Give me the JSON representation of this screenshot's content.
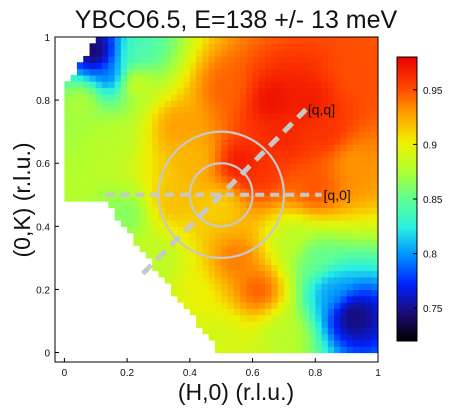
{
  "chart_data": {
    "type": "heatmap",
    "title": "YBCO6.5, E=138 +/- 13 meV",
    "xlabel": "(H,0) (r.l.u.)",
    "ylabel": "(0,K) (r.l.u.)",
    "xlim": [
      -0.03,
      1.0
    ],
    "ylim": [
      -0.03,
      1.0
    ],
    "xticks": [
      0,
      0.2,
      0.4,
      0.6,
      0.8,
      1
    ],
    "xtick_labels": [
      "0",
      "0.2",
      "0.4",
      "0.6",
      "0.8",
      "1"
    ],
    "yticks": [
      0,
      0.2,
      0.4,
      0.6,
      0.8,
      1
    ],
    "ytick_labels": [
      "0",
      "0.2",
      "0.4",
      "0.6",
      "0.8",
      "1"
    ],
    "colorbar": {
      "range": [
        0.72,
        0.98
      ],
      "ticks": [
        0.75,
        0.8,
        0.85,
        0.9,
        0.95
      ],
      "tick_labels": [
        "0.75",
        "0.8",
        "0.85",
        "0.9",
        "0.95"
      ],
      "colormap": "jet"
    },
    "center": [
      0.5,
      0.5
    ],
    "circle_radii": [
      0.1,
      0.2
    ],
    "cuts": [
      {
        "label": "[q,q]",
        "from": [
          0.25,
          0.25
        ],
        "to": [
          0.77,
          0.77
        ]
      },
      {
        "label": "[q,0]",
        "from": [
          0.13,
          0.5
        ],
        "to": [
          0.82,
          0.5
        ]
      }
    ],
    "data_region": {
      "x_min": 0.0,
      "x_max": 1.0,
      "y_min": 0.0,
      "y_max": 1.0
    },
    "features": [
      {
        "x": 0.56,
        "y": 0.6,
        "level": 0.975
      },
      {
        "x": 0.62,
        "y": 0.56,
        "level": 0.96
      },
      {
        "x": 0.66,
        "y": 0.8,
        "level": 0.975
      },
      {
        "x": 0.78,
        "y": 0.8,
        "level": 0.97
      },
      {
        "x": 0.83,
        "y": 0.7,
        "level": 0.96
      },
      {
        "x": 0.52,
        "y": 0.84,
        "level": 0.945
      },
      {
        "x": 0.8,
        "y": 0.52,
        "level": 0.95
      },
      {
        "x": 0.55,
        "y": 0.3,
        "level": 0.94
      },
      {
        "x": 0.62,
        "y": 0.2,
        "level": 0.95
      },
      {
        "x": 0.4,
        "y": 0.18,
        "level": 0.9
      },
      {
        "x": 0.42,
        "y": 0.62,
        "level": 0.92
      },
      {
        "x": 0.34,
        "y": 0.48,
        "level": 0.92
      },
      {
        "x": 0.22,
        "y": 0.86,
        "level": 0.9
      },
      {
        "x": 0.15,
        "y": 0.68,
        "level": 0.88
      },
      {
        "x": 0.2,
        "y": 0.44,
        "level": 0.86
      },
      {
        "x": 0.15,
        "y": 0.88,
        "level": 0.78
      },
      {
        "x": 0.1,
        "y": 0.95,
        "level": 0.73
      },
      {
        "x": 0.24,
        "y": 0.95,
        "level": 0.84
      },
      {
        "x": 0.92,
        "y": 0.12,
        "level": 0.74
      },
      {
        "x": 0.85,
        "y": 0.2,
        "level": 0.8
      },
      {
        "x": 0.8,
        "y": 0.3,
        "level": 0.85
      },
      {
        "x": 0.72,
        "y": 0.36,
        "level": 0.88
      },
      {
        "x": 0.3,
        "y": 0.3,
        "level": 0.88
      },
      {
        "x": 0.3,
        "y": 0.15,
        "level": 0.87
      },
      {
        "x": 0.5,
        "y": 0.05,
        "level": 0.89
      },
      {
        "x": 0.7,
        "y": 0.06,
        "level": 0.88
      },
      {
        "x": 0.92,
        "y": 0.6,
        "level": 0.93
      },
      {
        "x": 0.92,
        "y": 0.88,
        "level": 0.95
      },
      {
        "x": 0.5,
        "y": 0.47,
        "level": 0.91
      },
      {
        "x": 0.36,
        "y": 0.72,
        "level": 0.93
      },
      {
        "x": 0.06,
        "y": 0.8,
        "level": 0.88
      },
      {
        "x": 0.7,
        "y": 0.68,
        "level": 0.965
      }
    ]
  }
}
